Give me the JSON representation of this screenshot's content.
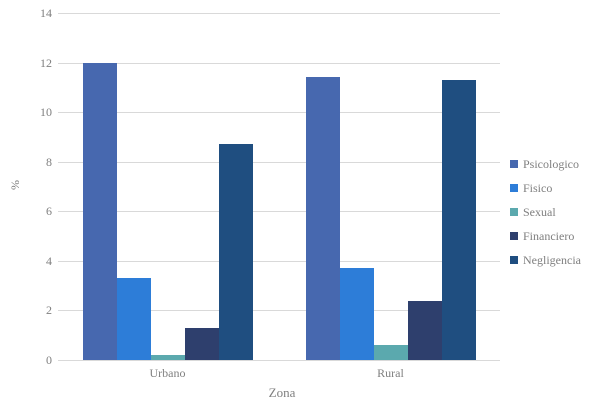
{
  "chart_data": {
    "type": "bar",
    "title": "",
    "categories": [
      "Urbano",
      "Rural"
    ],
    "series": [
      {
        "name": "Psicologico",
        "color": "#4768af",
        "values": [
          12.0,
          11.4
        ]
      },
      {
        "name": "Fisico",
        "color": "#2d7dd8",
        "values": [
          3.3,
          3.7
        ]
      },
      {
        "name": "Sexual",
        "color": "#5ba9ae",
        "values": [
          0.2,
          0.6
        ]
      },
      {
        "name": "Financiero",
        "color": "#2e3f6d",
        "values": [
          1.3,
          2.4
        ]
      },
      {
        "name": "Negligencia",
        "color": "#1f4e80",
        "values": [
          8.7,
          11.3
        ]
      }
    ],
    "xlabel": "Zona",
    "ylabel": "%",
    "ylim": [
      0,
      14
    ],
    "yticks": [
      0,
      2,
      4,
      6,
      8,
      10,
      12,
      14
    ],
    "grid": true,
    "legend_position": "right"
  },
  "colors": {
    "grid": "#d9d9d9",
    "text": "#7f7f7f",
    "background": "#ffffff"
  }
}
